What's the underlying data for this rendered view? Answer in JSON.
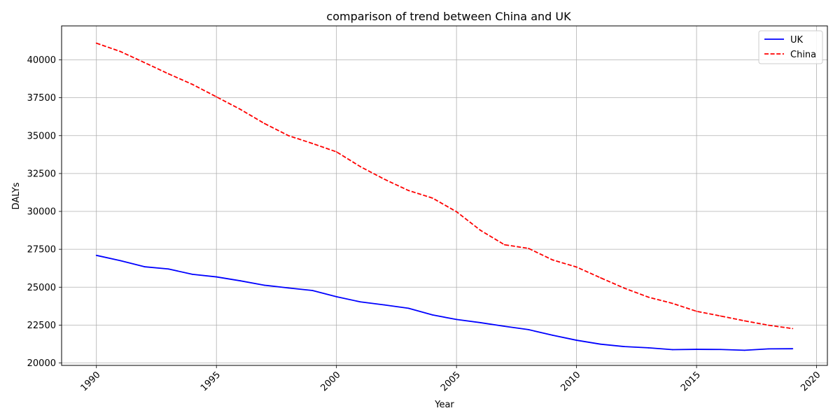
{
  "chart_data": {
    "type": "line",
    "title": "comparison of trend between China and UK",
    "xlabel": "Year",
    "ylabel": "DALYs",
    "xlim": [
      1988.55,
      2020.45
    ],
    "ylim": [
      19840,
      42240
    ],
    "xticks": [
      1990,
      1995,
      2000,
      2005,
      2010,
      2015,
      2020
    ],
    "yticks": [
      20000,
      22500,
      25000,
      27500,
      30000,
      32500,
      35000,
      37500,
      40000
    ],
    "grid": true,
    "legend_position": "top-right",
    "x": [
      1990,
      1991,
      1992,
      1993,
      1994,
      1995,
      1996,
      1997,
      1998,
      1999,
      2000,
      2001,
      2002,
      2003,
      2004,
      2005,
      2006,
      2007,
      2008,
      2009,
      2010,
      2011,
      2012,
      2013,
      2014,
      2015,
      2016,
      2017,
      2018,
      2019
    ],
    "series": [
      {
        "name": "UK",
        "color": "#0000ff",
        "dash": "solid",
        "values": [
          27100,
          26750,
          26350,
          26200,
          25850,
          25680,
          25420,
          25130,
          24950,
          24780,
          24370,
          24030,
          23830,
          23610,
          23170,
          22870,
          22660,
          22420,
          22200,
          21830,
          21500,
          21240,
          21080,
          21000,
          20880,
          20900,
          20890,
          20840,
          20930,
          20940
        ]
      },
      {
        "name": "China",
        "color": "#ff0000",
        "dash": "dashed",
        "values": [
          41100,
          40550,
          39820,
          39080,
          38380,
          37560,
          36730,
          35800,
          35000,
          34480,
          33930,
          32950,
          32120,
          31380,
          30880,
          29980,
          28750,
          27800,
          27560,
          26800,
          26330,
          25620,
          24930,
          24340,
          23930,
          23410,
          23100,
          22780,
          22490,
          22270
        ]
      }
    ]
  }
}
